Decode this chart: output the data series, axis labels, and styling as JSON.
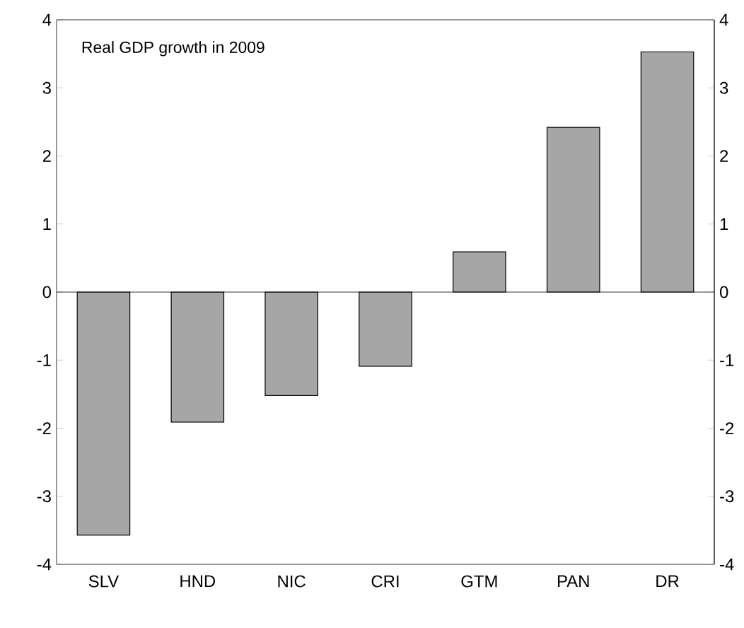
{
  "chart_data": {
    "type": "bar",
    "title": "Real GDP growth in 2009",
    "categories": [
      "SLV",
      "HND",
      "NIC",
      "CRI",
      "GTM",
      "PAN",
      "DR"
    ],
    "values": [
      -3.57,
      -1.91,
      -1.52,
      -1.09,
      0.59,
      2.42,
      3.53
    ],
    "color": "#a6a6a6",
    "ylim": [
      -4,
      4
    ],
    "yticks": [
      -4,
      -3,
      -2,
      -1,
      0,
      1,
      2,
      3,
      4
    ],
    "y2lim": [
      -4,
      4
    ],
    "y2ticks": [
      -4,
      -3,
      -2,
      -1,
      0,
      1,
      2,
      3,
      4
    ]
  }
}
